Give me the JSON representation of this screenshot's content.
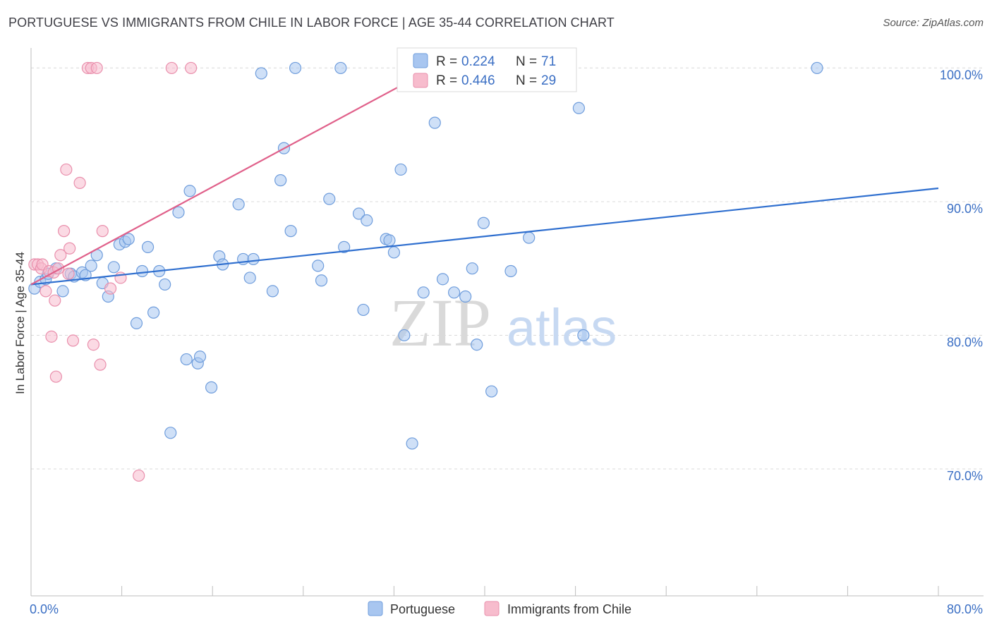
{
  "chart_data": {
    "type": "scatter",
    "title": "PORTUGUESE VS IMMIGRANTS FROM CHILE IN LABOR FORCE | AGE 35-44 CORRELATION CHART",
    "source": "Source: ZipAtlas.com",
    "watermark": {
      "zip": "ZIP",
      "atlas": "atlas"
    },
    "ylabel": "In Labor Force | Age 35-44",
    "xlabel": "",
    "xlim": [
      0,
      80
    ],
    "ylim": [
      60.5,
      101.5
    ],
    "x_tick_labels": [
      {
        "value": 0,
        "label": "0.0%"
      },
      {
        "value": 80,
        "label": "80.0%"
      }
    ],
    "y_tick_labels": [
      {
        "value": 100,
        "label": "100.0%"
      },
      {
        "value": 90,
        "label": "90.0%"
      },
      {
        "value": 80,
        "label": "80.0%"
      },
      {
        "value": 70,
        "label": "70.0%"
      }
    ],
    "colors": {
      "blue_fill": "#a8c6f0",
      "blue_stroke": "#6f9ddc",
      "blue_line": "#2f6fcf",
      "pink_fill": "#f7bccd",
      "pink_stroke": "#e98fac",
      "pink_line": "#e0608a",
      "grid": "#d8d8d8",
      "axis_text": "#3b6fc4"
    },
    "legend": [
      {
        "series": "Portuguese",
        "r_label": "R = ",
        "r_value": "0.224",
        "n_label": "N = ",
        "n_value": "71"
      },
      {
        "series": "Immigrants from Chile",
        "r_label": "R = ",
        "r_value": "0.446",
        "n_label": "N = ",
        "n_value": "29"
      }
    ],
    "series": [
      {
        "name": "Portuguese",
        "color": "#a8c6f0",
        "trend": {
          "x": [
            0,
            80
          ],
          "y": [
            83.8,
            91.0
          ]
        },
        "points": [
          {
            "x": 0.3,
            "y": 83.5
          },
          {
            "x": 0.8,
            "y": 84.0
          },
          {
            "x": 1.3,
            "y": 84.2
          },
          {
            "x": 1.5,
            "y": 84.6
          },
          {
            "x": 2.2,
            "y": 85.0
          },
          {
            "x": 2.8,
            "y": 83.3
          },
          {
            "x": 3.5,
            "y": 84.6
          },
          {
            "x": 3.8,
            "y": 84.4
          },
          {
            "x": 4.5,
            "y": 84.7
          },
          {
            "x": 4.8,
            "y": 84.5
          },
          {
            "x": 5.3,
            "y": 85.2
          },
          {
            "x": 5.8,
            "y": 86.0
          },
          {
            "x": 6.3,
            "y": 83.9
          },
          {
            "x": 6.8,
            "y": 82.9
          },
          {
            "x": 7.3,
            "y": 85.1
          },
          {
            "x": 7.8,
            "y": 86.8
          },
          {
            "x": 8.3,
            "y": 87.0
          },
          {
            "x": 8.6,
            "y": 87.2
          },
          {
            "x": 9.3,
            "y": 80.9
          },
          {
            "x": 9.8,
            "y": 84.8
          },
          {
            "x": 10.3,
            "y": 86.6
          },
          {
            "x": 10.8,
            "y": 81.7
          },
          {
            "x": 11.3,
            "y": 84.8
          },
          {
            "x": 11.8,
            "y": 83.8
          },
          {
            "x": 12.3,
            "y": 72.7
          },
          {
            "x": 13.0,
            "y": 89.2
          },
          {
            "x": 13.7,
            "y": 78.2
          },
          {
            "x": 14.0,
            "y": 90.8
          },
          {
            "x": 14.7,
            "y": 77.9
          },
          {
            "x": 14.9,
            "y": 78.4
          },
          {
            "x": 15.9,
            "y": 76.1
          },
          {
            "x": 16.6,
            "y": 85.9
          },
          {
            "x": 16.9,
            "y": 85.3
          },
          {
            "x": 18.3,
            "y": 89.8
          },
          {
            "x": 18.7,
            "y": 85.7
          },
          {
            "x": 19.3,
            "y": 84.3
          },
          {
            "x": 19.6,
            "y": 85.7
          },
          {
            "x": 20.3,
            "y": 99.6
          },
          {
            "x": 21.3,
            "y": 83.3
          },
          {
            "x": 22.0,
            "y": 91.6
          },
          {
            "x": 22.3,
            "y": 94.0
          },
          {
            "x": 22.9,
            "y": 87.8
          },
          {
            "x": 23.3,
            "y": 100.0
          },
          {
            "x": 25.3,
            "y": 85.2
          },
          {
            "x": 25.6,
            "y": 84.1
          },
          {
            "x": 26.3,
            "y": 90.2
          },
          {
            "x": 27.3,
            "y": 100.0
          },
          {
            "x": 27.6,
            "y": 86.6
          },
          {
            "x": 28.9,
            "y": 89.1
          },
          {
            "x": 29.3,
            "y": 81.9
          },
          {
            "x": 29.6,
            "y": 88.6
          },
          {
            "x": 31.3,
            "y": 87.2
          },
          {
            "x": 31.6,
            "y": 87.1
          },
          {
            "x": 32.0,
            "y": 86.2
          },
          {
            "x": 32.6,
            "y": 92.4
          },
          {
            "x": 32.9,
            "y": 80.0
          },
          {
            "x": 33.6,
            "y": 71.9
          },
          {
            "x": 34.6,
            "y": 83.2
          },
          {
            "x": 35.6,
            "y": 95.9
          },
          {
            "x": 36.3,
            "y": 84.2
          },
          {
            "x": 37.3,
            "y": 83.2
          },
          {
            "x": 38.3,
            "y": 82.9
          },
          {
            "x": 38.9,
            "y": 85.0
          },
          {
            "x": 39.3,
            "y": 79.3
          },
          {
            "x": 39.9,
            "y": 88.4
          },
          {
            "x": 40.6,
            "y": 75.8
          },
          {
            "x": 42.3,
            "y": 84.8
          },
          {
            "x": 43.9,
            "y": 87.3
          },
          {
            "x": 48.3,
            "y": 97.0
          },
          {
            "x": 48.7,
            "y": 80.0
          },
          {
            "x": 69.3,
            "y": 100.0
          }
        ]
      },
      {
        "name": "Immigrants from Chile",
        "color": "#f7bccd",
        "trend": {
          "x": [
            0,
            35.5
          ],
          "y": [
            83.8,
            100.0
          ]
        },
        "points": [
          {
            "x": 0.3,
            "y": 85.3
          },
          {
            "x": 0.6,
            "y": 85.3
          },
          {
            "x": 0.9,
            "y": 85.0
          },
          {
            "x": 1.0,
            "y": 85.3
          },
          {
            "x": 1.3,
            "y": 83.3
          },
          {
            "x": 1.6,
            "y": 84.8
          },
          {
            "x": 1.8,
            "y": 79.9
          },
          {
            "x": 2.0,
            "y": 84.7
          },
          {
            "x": 2.1,
            "y": 82.6
          },
          {
            "x": 2.2,
            "y": 76.9
          },
          {
            "x": 2.4,
            "y": 85.0
          },
          {
            "x": 2.6,
            "y": 86.0
          },
          {
            "x": 2.9,
            "y": 87.8
          },
          {
            "x": 3.1,
            "y": 92.4
          },
          {
            "x": 3.3,
            "y": 84.6
          },
          {
            "x": 3.4,
            "y": 86.5
          },
          {
            "x": 3.7,
            "y": 79.6
          },
          {
            "x": 4.3,
            "y": 91.4
          },
          {
            "x": 5.0,
            "y": 100.0
          },
          {
            "x": 5.3,
            "y": 100.0
          },
          {
            "x": 5.5,
            "y": 79.3
          },
          {
            "x": 5.8,
            "y": 100.0
          },
          {
            "x": 6.1,
            "y": 77.8
          },
          {
            "x": 6.3,
            "y": 87.8
          },
          {
            "x": 7.0,
            "y": 83.5
          },
          {
            "x": 7.9,
            "y": 84.3
          },
          {
            "x": 9.5,
            "y": 69.5
          },
          {
            "x": 12.4,
            "y": 100.0
          },
          {
            "x": 14.1,
            "y": 100.0
          }
        ]
      }
    ]
  }
}
